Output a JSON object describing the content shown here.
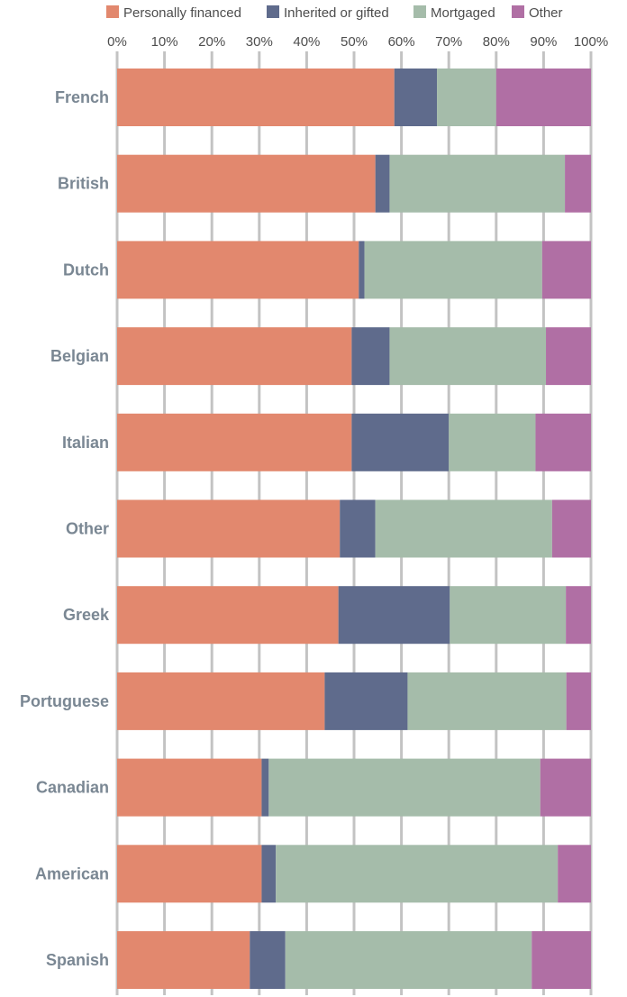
{
  "chart_data": {
    "type": "bar",
    "orientation": "horizontal",
    "stacked": true,
    "title": "",
    "xlabel": "",
    "ylabel": "",
    "xlim": [
      0,
      100
    ],
    "tick_labels": [
      "0%",
      "10%",
      "20%",
      "30%",
      "40%",
      "50%",
      "60%",
      "70%",
      "80%",
      "90%",
      "100%"
    ],
    "grid": true,
    "legend_position": "top",
    "categories": [
      "French",
      "British",
      "Dutch",
      "Belgian",
      "Italian",
      "Other",
      "Greek",
      "Portuguese",
      "Canadian",
      "American",
      "Spanish"
    ],
    "series": [
      {
        "name": "Personally financed",
        "color": "#e2886e",
        "values": [
          58.5,
          54.5,
          51,
          49.5,
          49.5,
          47,
          46.7,
          43.8,
          30.5,
          30.5,
          28
        ]
      },
      {
        "name": "Inherited or gifted",
        "color": "#5f6b8c",
        "values": [
          9,
          3,
          1.2,
          8,
          20.5,
          7.5,
          23.5,
          17.5,
          1.5,
          3,
          7.5
        ]
      },
      {
        "name": "Mortgaged",
        "color": "#a5bcaa",
        "values": [
          12.5,
          37,
          37.5,
          33,
          18.3,
          37.3,
          24.5,
          33.5,
          57.3,
          59.5,
          52
        ]
      },
      {
        "name": "Other",
        "color": "#b06fa4",
        "values": [
          20,
          5.5,
          10.3,
          9.5,
          11.7,
          8.2,
          5.3,
          5.2,
          10.7,
          7,
          12.5
        ]
      }
    ]
  }
}
